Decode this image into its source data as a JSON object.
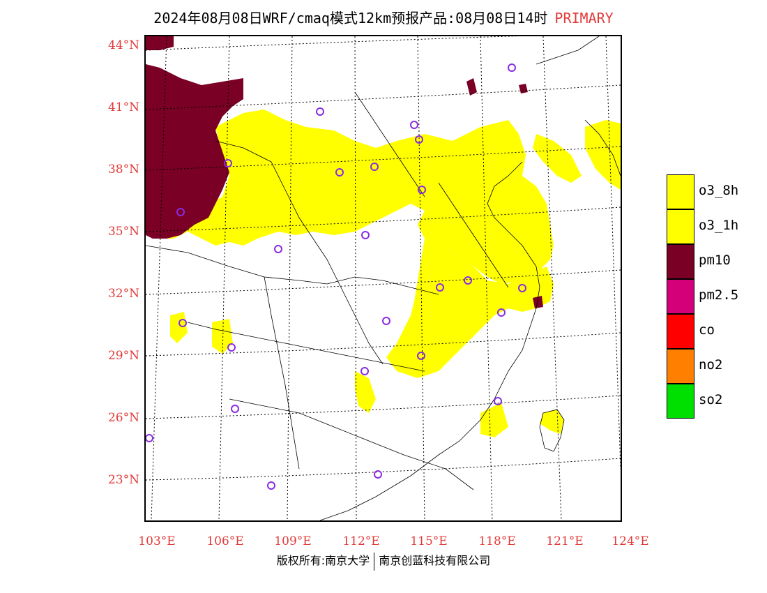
{
  "title": {
    "main": "2024年08月08日WRF/cmaq模式12km预报产品:08月08日14时",
    "tag": "PRIMARY"
  },
  "lat_labels": [
    "44°N",
    "41°N",
    "38°N",
    "35°N",
    "32°N",
    "29°N",
    "26°N",
    "23°N"
  ],
  "lon_labels": [
    "103°E",
    "106°E",
    "109°E",
    "112°E",
    "115°E",
    "118°E",
    "121°E",
    "124°E"
  ],
  "legend": [
    {
      "label": "o3_8h",
      "color": "#ffff00"
    },
    {
      "label": "o3_1h",
      "color": "#ffff00"
    },
    {
      "label": "pm10",
      "color": "#7a0026"
    },
    {
      "label": "pm2.5",
      "color": "#d4007a"
    },
    {
      "label": "co",
      "color": "#ff0000"
    },
    {
      "label": "no2",
      "color": "#ff8000"
    },
    {
      "label": "so2",
      "color": "#00e000"
    }
  ],
  "map": {
    "colors": {
      "o3": "#ffff00",
      "pm10": "#7a0026",
      "station": "#8a2be2",
      "grid": "#000000",
      "border": "#000000"
    }
  },
  "footer": {
    "left": "版权所有:南京大学",
    "right": "南京创蓝科技有限公司"
  }
}
